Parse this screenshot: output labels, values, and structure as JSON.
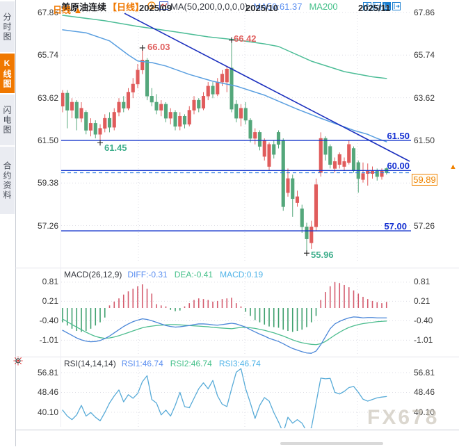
{
  "sidebar": {
    "items": [
      {
        "label": "分时图",
        "active": false
      },
      {
        "label": "K线图",
        "active": true
      },
      {
        "label": "闪电图",
        "active": false
      },
      {
        "label": "合约资料",
        "active": false
      }
    ]
  },
  "header": {
    "symbol": "美原油连续",
    "period_tag": "【日线】",
    "ma_settings": "MA(50,200,0,0,0,0)",
    "ma50_label": "MA50:61.37",
    "ma200_label": "MA200"
  },
  "toolbar": {
    "icons": [
      "pan-icon",
      "axis-range-icon",
      "axis-scale-icon",
      "popout-icon"
    ]
  },
  "main_chart": {
    "left_axis": [
      "67.86",
      "65.74",
      "63.62",
      "61.50",
      "59.38",
      "57.26"
    ],
    "right_axis": [
      "67.86",
      "65.74",
      "63.62",
      "61.50",
      "57.26"
    ],
    "hline_labels": [
      "61.50",
      "60.00",
      "57.00"
    ],
    "annotations": [
      "66.03",
      "66.42",
      "61.45",
      "55.96"
    ],
    "current_price": "59.89",
    "up_arrow": "▲"
  },
  "macd_panel": {
    "title": "MACD(26,12,9)",
    "diff_label": "DIFF:-0.31",
    "dea_label": "DEA:-0.41",
    "macd_label": "MACD:0.19",
    "axis": [
      "0.81",
      "0.21",
      "-0.40",
      "-1.01"
    ]
  },
  "rsi_panel": {
    "title": "RSI(14,14,14)",
    "rsi1_label": "RSI1:46.74",
    "rsi2_label": "RSI2:46.74",
    "rsi3_label": "RSI3:46.74",
    "axis": [
      "56.81",
      "48.46",
      "40.10"
    ]
  },
  "bottom": {
    "period": "日线",
    "period_arrow": "▲",
    "months": [
      "2025/09",
      "2025/10",
      "2025/11"
    ]
  },
  "watermark": "FX678",
  "colors": {
    "up": "#e05c5c",
    "down": "#54a77b",
    "ma50": "#5a9fe0",
    "ma200": "#4dbd97",
    "trendline": "#1b2fbe",
    "hline": "#1334cc",
    "current_dash": "#2e7de0",
    "accent_orange": "#f08200",
    "macd_diff": "#4a86d8",
    "macd_dea": "#4dbd8f",
    "hist_up": "#d45c6e",
    "hist_down": "#3fa06e",
    "rsi_line": "#58abd8",
    "grid": "#dcdce4"
  },
  "chart_data": [
    {
      "type": "candlestick",
      "title": "美原油连续 日线",
      "y_ticks": [
        67.86,
        65.74,
        63.62,
        61.5,
        59.38,
        57.26
      ],
      "x_month_ticks": [
        "2025/09",
        "2025/10",
        "2025/11"
      ],
      "ylim": [
        55.6,
        67.86
      ],
      "ohlc": [
        [
          63.2,
          64.0,
          62.9,
          63.85
        ],
        [
          63.85,
          64.0,
          62.1,
          63.0
        ],
        [
          63.0,
          63.6,
          62.6,
          63.4
        ],
        [
          63.4,
          63.5,
          62.0,
          62.6
        ],
        [
          62.6,
          63.4,
          62.4,
          63.1
        ],
        [
          62.9,
          63.0,
          61.8,
          62.0
        ],
        [
          62.0,
          62.6,
          61.7,
          62.35
        ],
        [
          62.35,
          62.5,
          61.6,
          61.8
        ],
        [
          61.8,
          62.3,
          61.45,
          62.1
        ],
        [
          62.1,
          62.8,
          61.9,
          62.6
        ],
        [
          62.6,
          62.9,
          61.9,
          62.15
        ],
        [
          62.15,
          63.1,
          62.0,
          62.9
        ],
        [
          62.9,
          63.6,
          62.7,
          63.4
        ],
        [
          63.4,
          63.7,
          62.9,
          63.1
        ],
        [
          63.1,
          64.1,
          63.0,
          63.9
        ],
        [
          63.9,
          64.6,
          63.6,
          64.3
        ],
        [
          64.3,
          65.3,
          64.1,
          65.0
        ],
        [
          65.0,
          66.03,
          64.8,
          65.5
        ],
        [
          65.5,
          65.6,
          63.5,
          63.7
        ],
        [
          63.7,
          64.1,
          63.2,
          63.4
        ],
        [
          63.4,
          63.8,
          62.8,
          63.0
        ],
        [
          63.0,
          63.5,
          62.7,
          63.3
        ],
        [
          63.3,
          63.4,
          62.4,
          62.6
        ],
        [
          62.6,
          63.1,
          62.3,
          62.9
        ],
        [
          62.9,
          63.0,
          62.0,
          62.2
        ],
        [
          62.2,
          62.9,
          62.0,
          62.7
        ],
        [
          62.7,
          62.8,
          62.1,
          62.3
        ],
        [
          62.3,
          63.2,
          62.2,
          63.0
        ],
        [
          63.0,
          63.7,
          62.8,
          63.5
        ],
        [
          63.5,
          63.6,
          62.9,
          63.1
        ],
        [
          63.1,
          63.9,
          63.0,
          63.7
        ],
        [
          63.7,
          64.4,
          63.5,
          64.2
        ],
        [
          64.2,
          64.4,
          63.6,
          63.8
        ],
        [
          63.8,
          64.6,
          63.7,
          64.4
        ],
        [
          64.4,
          65.0,
          64.2,
          64.8
        ],
        [
          64.4,
          65.2,
          63.9,
          65.05
        ],
        [
          65.1,
          66.42,
          62.9,
          63.05
        ],
        [
          63.3,
          63.5,
          62.4,
          62.6
        ],
        [
          62.6,
          63.3,
          62.2,
          63.1
        ],
        [
          63.1,
          63.4,
          62.3,
          62.5
        ],
        [
          62.5,
          62.6,
          61.4,
          61.6
        ],
        [
          61.6,
          62.1,
          61.3,
          61.9
        ],
        [
          61.9,
          62.0,
          61.0,
          61.2
        ],
        [
          60.7,
          61.6,
          60.5,
          61.5
        ],
        [
          60.2,
          61.4,
          60.0,
          61.3
        ],
        [
          61.3,
          61.5,
          60.6,
          60.8
        ],
        [
          61.9,
          62.0,
          61.1,
          61.3
        ],
        [
          61.5,
          61.6,
          58.0,
          58.2
        ],
        [
          58.9,
          60.1,
          58.7,
          59.6
        ],
        [
          59.6,
          59.8,
          57.7,
          58.6
        ],
        [
          58.4,
          59.0,
          58.2,
          58.7
        ],
        [
          58.1,
          58.3,
          56.9,
          57.2
        ],
        [
          57.2,
          57.4,
          55.96,
          56.6
        ],
        [
          56.4,
          57.5,
          56.1,
          57.2
        ],
        [
          57.2,
          59.6,
          57.0,
          59.3
        ],
        [
          59.9,
          61.9,
          59.7,
          61.6
        ],
        [
          61.6,
          61.7,
          60.5,
          60.8
        ],
        [
          61.2,
          61.3,
          60.1,
          60.3
        ],
        [
          60.1,
          60.65,
          59.9,
          60.45
        ],
        [
          60.3,
          60.9,
          60.1,
          60.8
        ],
        [
          60.2,
          60.65,
          60.0,
          60.45
        ],
        [
          60.4,
          61.5,
          60.3,
          61.3
        ],
        [
          61.1,
          61.2,
          59.9,
          60.0
        ],
        [
          60.4,
          60.5,
          58.9,
          59.6
        ],
        [
          59.55,
          60.4,
          59.4,
          59.85
        ],
        [
          59.85,
          60.35,
          59.25,
          60.0
        ],
        [
          59.85,
          60.2,
          59.6,
          60.0
        ],
        [
          60.0,
          60.1,
          59.5,
          59.7
        ],
        [
          59.7,
          60.1,
          59.55,
          60.0
        ],
        [
          60.1,
          60.15,
          59.8,
          59.89
        ]
      ],
      "ma50": [
        [
          0,
          67.0
        ],
        [
          5,
          66.85
        ],
        [
          10,
          66.45
        ],
        [
          14,
          65.75
        ],
        [
          16,
          65.45
        ],
        [
          19,
          65.37
        ],
        [
          22,
          65.2
        ],
        [
          27,
          64.78
        ],
        [
          32,
          64.44
        ],
        [
          37,
          64.2
        ],
        [
          43,
          63.75
        ],
        [
          46,
          63.45
        ],
        [
          50,
          63.05
        ],
        [
          55,
          62.6
        ],
        [
          62,
          62.0
        ],
        [
          65,
          61.8
        ],
        [
          67,
          61.6
        ],
        [
          69,
          61.43
        ]
      ],
      "ma200": [
        [
          0,
          67.72
        ],
        [
          9,
          67.45
        ],
        [
          16,
          67.17
        ],
        [
          24,
          66.9
        ],
        [
          31,
          66.65
        ],
        [
          37,
          66.5
        ],
        [
          43,
          66.3
        ],
        [
          46,
          66.17
        ],
        [
          53,
          65.44
        ],
        [
          60,
          64.92
        ],
        [
          66,
          64.66
        ],
        [
          69,
          64.58
        ]
      ],
      "trendline": {
        "x1": 179,
        "price1": 67.82,
        "x2": 589,
        "price2": 60.46
      },
      "hlines": [
        61.5,
        60.0,
        57.0
      ],
      "current_price": 59.89,
      "annotations": [
        {
          "text": "66.03",
          "bar": 17,
          "price": 66.03,
          "kind": "high"
        },
        {
          "text": "66.42",
          "bar": 36,
          "price": 66.42,
          "kind": "high"
        },
        {
          "text": "61.45",
          "bar": 8,
          "price": 61.45,
          "kind": "low"
        },
        {
          "text": "55.96",
          "bar": 52,
          "price": 55.96,
          "kind": "low"
        }
      ]
    },
    {
      "type": "bar",
      "title": "MACD(26,12,9)",
      "y_ticks": [
        0.81,
        0.21,
        -0.4,
        -1.01
      ],
      "histogram": [
        -0.45,
        -0.55,
        -0.65,
        -0.72,
        -0.75,
        -0.72,
        -0.65,
        -0.55,
        -0.45,
        -0.3,
        0.08,
        0.2,
        0.3,
        0.42,
        0.52,
        0.6,
        0.68,
        0.74,
        0.6,
        0.45,
        0.12,
        0.08,
        0.05,
        -0.06,
        -0.1,
        -0.08,
        0.05,
        0.15,
        0.25,
        0.3,
        0.28,
        0.25,
        0.2,
        0.22,
        0.28,
        0.3,
        0.32,
        0.15,
        0.05,
        -0.12,
        -0.25,
        -0.38,
        -0.45,
        -0.52,
        -0.58,
        -0.6,
        -0.62,
        -0.68,
        -0.72,
        -0.75,
        -0.72,
        -0.68,
        -0.6,
        -0.45,
        -0.25,
        0.25,
        0.5,
        0.68,
        0.81,
        0.78,
        0.72,
        0.65,
        0.55,
        0.45,
        0.35,
        0.28,
        0.22,
        0.18,
        0.15,
        0.19
      ],
      "diff": [
        -0.7,
        -0.78,
        -0.86,
        -0.94,
        -1.0,
        -1.04,
        -1.06,
        -1.05,
        -1.02,
        -0.96,
        -0.88,
        -0.78,
        -0.68,
        -0.58,
        -0.5,
        -0.43,
        -0.38,
        -0.34,
        -0.36,
        -0.4,
        -0.45,
        -0.5,
        -0.55,
        -0.58,
        -0.6,
        -0.59,
        -0.57,
        -0.55,
        -0.52,
        -0.5,
        -0.5,
        -0.51,
        -0.53,
        -0.54,
        -0.52,
        -0.5,
        -0.48,
        -0.5,
        -0.55,
        -0.6,
        -0.68,
        -0.75,
        -0.82,
        -0.88,
        -0.95,
        -1.0,
        -1.05,
        -1.12,
        -1.2,
        -1.27,
        -1.32,
        -1.37,
        -1.41,
        -1.42,
        -1.35,
        -1.15,
        -0.9,
        -0.65,
        -0.5,
        -0.42,
        -0.36,
        -0.31,
        -0.28,
        -0.29,
        -0.31,
        -0.3,
        -0.3,
        -0.31,
        -0.31,
        -0.31
      ],
      "dea": [
        -0.35,
        -0.43,
        -0.52,
        -0.6,
        -0.68,
        -0.76,
        -0.83,
        -0.89,
        -0.93,
        -0.95,
        -0.94,
        -0.91,
        -0.87,
        -0.82,
        -0.77,
        -0.72,
        -0.67,
        -0.62,
        -0.59,
        -0.57,
        -0.55,
        -0.54,
        -0.53,
        -0.52,
        -0.52,
        -0.53,
        -0.54,
        -0.55,
        -0.56,
        -0.57,
        -0.58,
        -0.59,
        -0.61,
        -0.62,
        -0.63,
        -0.64,
        -0.65,
        -0.63,
        -0.61,
        -0.61,
        -0.62,
        -0.64,
        -0.67,
        -0.7,
        -0.74,
        -0.78,
        -0.83,
        -0.88,
        -0.94,
        -1.0,
        -1.05,
        -1.09,
        -1.12,
        -1.14,
        -1.15,
        -1.12,
        -1.05,
        -0.95,
        -0.85,
        -0.76,
        -0.68,
        -0.61,
        -0.56,
        -0.52,
        -0.49,
        -0.47,
        -0.45,
        -0.43,
        -0.42,
        -0.41
      ]
    },
    {
      "type": "line",
      "title": "RSI(14,14,14)",
      "y_ticks": [
        56.81,
        48.46,
        40.1
      ],
      "values": [
        41,
        38.5,
        37,
        39,
        43,
        38.5,
        40,
        38,
        36.5,
        40,
        44,
        47,
        49.5,
        44.5,
        47.5,
        46,
        48,
        53,
        55.5,
        45.5,
        44,
        39,
        41,
        38.5,
        43,
        48.5,
        42.5,
        42,
        46,
        50,
        52.5,
        50,
        53.5,
        47,
        43.5,
        42.5,
        50,
        57,
        58.5,
        50,
        44,
        37.5,
        43,
        46.3,
        44.8,
        40,
        36,
        31.5,
        38,
        35.5,
        37,
        35.5,
        32,
        33.5,
        44,
        54.5,
        54.2,
        54.4,
        48.5,
        47.8,
        48.9,
        50.5,
        51,
        48.5,
        45.6,
        44.8,
        45.5,
        46.2,
        46.5,
        46.74
      ]
    }
  ]
}
